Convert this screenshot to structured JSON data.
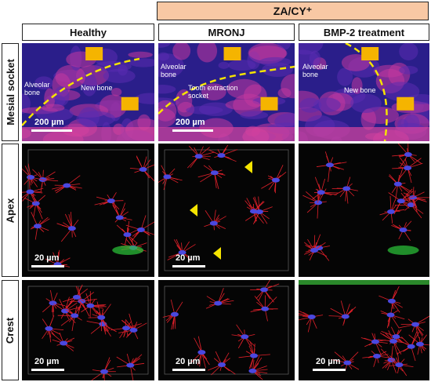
{
  "header": {
    "title": "ZA/CY⁺"
  },
  "columns": [
    "Healthy",
    "MRONJ",
    "BMP-2 treatment"
  ],
  "rows": [
    "Mesial socket",
    "Apex",
    "Crest"
  ],
  "panels": [
    [
      {
        "labels": [
          "Alveolar bone",
          "New bone"
        ],
        "scale_bar": "200 µm"
      },
      {
        "labels": [
          "Alveolar bone",
          "Tooth extraction socket"
        ],
        "scale_bar": "200 µm"
      },
      {
        "labels": [
          "Alveolar bone",
          "New bone"
        ]
      }
    ],
    [
      {
        "scale_bar": "20 µm"
      },
      {
        "scale_bar": "20 µm"
      },
      {}
    ],
    [
      {
        "scale_bar": "20 µm"
      },
      {
        "scale_bar": "20 µm"
      },
      {
        "scale_bar": "20 µm"
      }
    ]
  ]
}
